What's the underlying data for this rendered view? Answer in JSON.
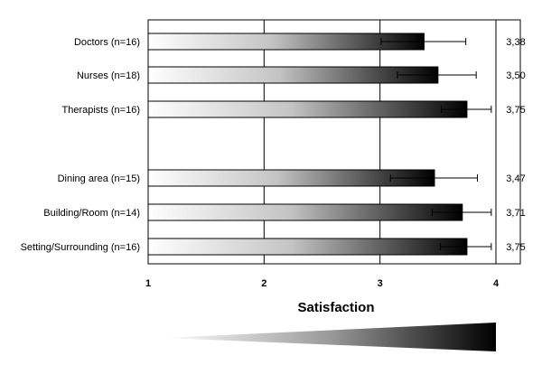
{
  "chart_data": {
    "type": "bar",
    "orientation": "horizontal",
    "xlabel": "Satisfaction",
    "xlim": [
      1,
      4
    ],
    "xticks": [
      "1",
      "2",
      "3",
      "4"
    ],
    "grid": true,
    "gradient_fill": true,
    "categories": [
      "Doctors (n=16)",
      "Nurses (n=18)",
      "Therapists (n=16)",
      "Dining area (n=15)",
      "Building/Room (n=14)",
      "Setting/Surrounding (n=16)"
    ],
    "values": [
      3.38,
      3.5,
      3.75,
      3.47,
      3.71,
      3.75
    ],
    "value_labels": [
      "3,38",
      "3,50",
      "3,75",
      "3,47",
      "3,71",
      "3,75"
    ],
    "error_low": [
      3.01,
      3.15,
      3.53,
      3.09,
      3.45,
      3.52
    ],
    "error_high": [
      3.74,
      3.83,
      3.96,
      3.84,
      3.96,
      3.96
    ]
  }
}
